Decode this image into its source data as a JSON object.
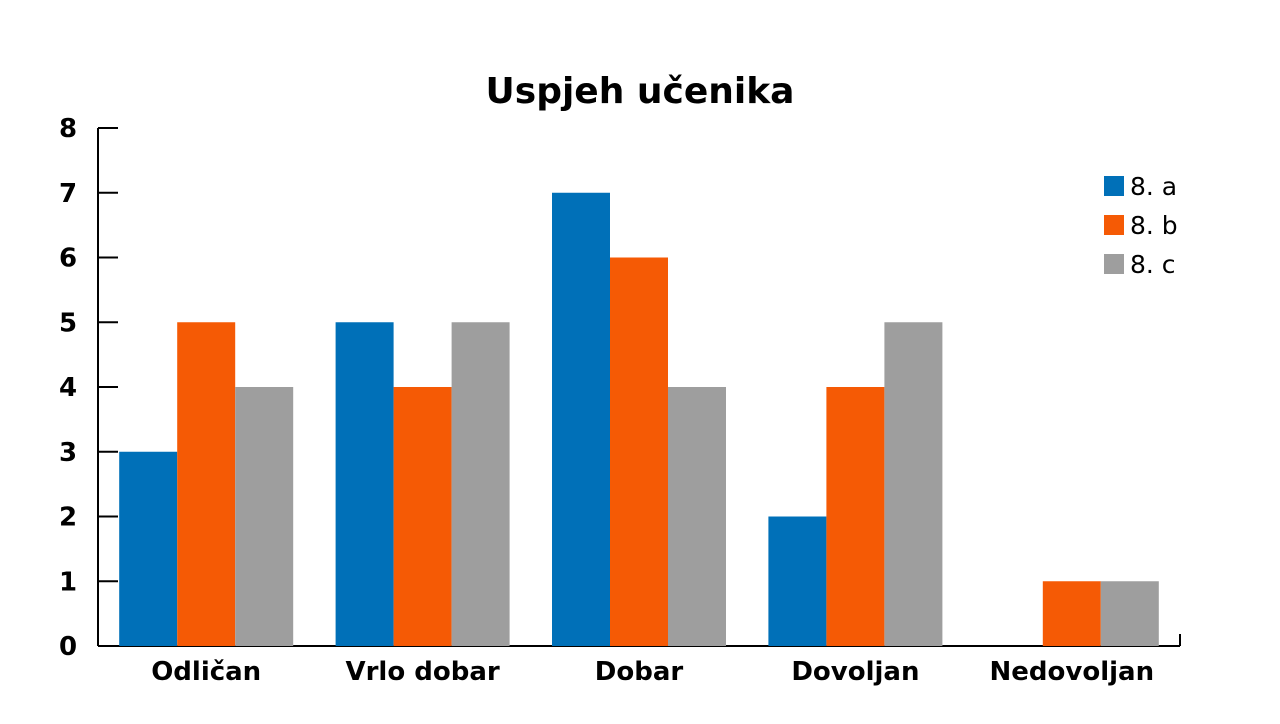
{
  "chart_data": {
    "type": "bar",
    "title": "Uspjeh učenika",
    "xlabel": "",
    "ylabel": "",
    "categories": [
      "Odličan",
      "Vrlo dobar",
      "Dobar",
      "Dovoljan",
      "Nedovoljan"
    ],
    "series": [
      {
        "name": "8. a",
        "values": [
          3,
          5,
          7,
          2,
          0
        ],
        "color": "#0070B8"
      },
      {
        "name": "8. b",
        "values": [
          5,
          4,
          6,
          4,
          1
        ],
        "color": "#F55A05"
      },
      {
        "name": "8. c",
        "values": [
          4,
          5,
          4,
          5,
          1
        ],
        "color": "#9E9E9E"
      }
    ],
    "ylim": [
      0,
      8
    ],
    "yticks": [
      0,
      1,
      2,
      3,
      4,
      5,
      6,
      7,
      8
    ],
    "grid": false,
    "legend_position": "top-right"
  }
}
